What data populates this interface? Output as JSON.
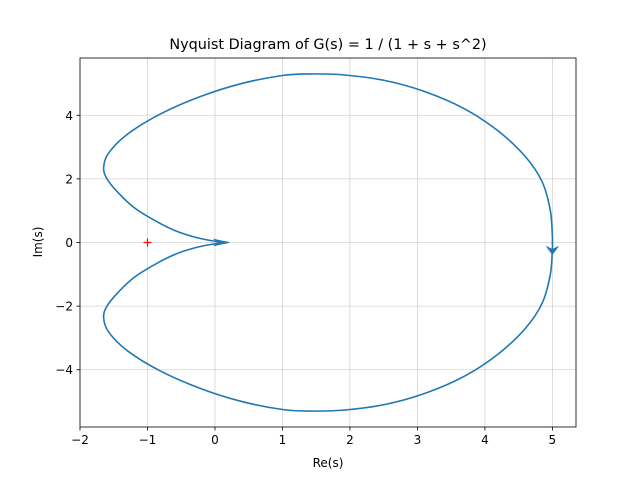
{
  "chart_data": {
    "type": "line",
    "title": "Nyquist Diagram of G(s) = 1 / (1 + s + s^2)",
    "xlabel": "Re(s)",
    "ylabel": "Im(s)",
    "xlim": [
      -2,
      5.35
    ],
    "ylim": [
      -5.8,
      5.8
    ],
    "x_ticks": [
      -2,
      -1,
      0,
      1,
      2,
      3,
      4,
      5
    ],
    "y_ticks": [
      -4,
      -2,
      0,
      2,
      4
    ],
    "x_tick_labels": [
      "−2",
      "−1",
      "0",
      "1",
      "2",
      "3",
      "4",
      "5"
    ],
    "y_tick_labels": [
      "−4",
      "−2",
      "0",
      "2",
      "4"
    ],
    "grid": true,
    "series": [
      {
        "color": "#1f77b4",
        "points": [
          [
            0.2,
            0.0
          ],
          [
            0.0,
            0.04
          ],
          [
            -0.3,
            0.17
          ],
          [
            -0.6,
            0.38
          ],
          [
            -0.9,
            0.7
          ],
          [
            -1.2,
            1.1
          ],
          [
            -1.45,
            1.6
          ],
          [
            -1.6,
            2.0
          ],
          [
            -1.65,
            2.35
          ],
          [
            -1.58,
            2.8
          ],
          [
            -1.3,
            3.4
          ],
          [
            -0.8,
            4.05
          ],
          [
            -0.2,
            4.6
          ],
          [
            0.4,
            5.0
          ],
          [
            1.0,
            5.25
          ],
          [
            1.4,
            5.3
          ],
          [
            1.9,
            5.27
          ],
          [
            2.5,
            5.1
          ],
          [
            3.1,
            4.75
          ],
          [
            3.7,
            4.2
          ],
          [
            4.2,
            3.5
          ],
          [
            4.6,
            2.7
          ],
          [
            4.85,
            1.9
          ],
          [
            4.97,
            1.0
          ],
          [
            5.0,
            0.2
          ],
          [
            5.0,
            0.0
          ],
          [
            5.0,
            -0.2
          ],
          [
            4.97,
            -1.0
          ],
          [
            4.85,
            -1.9
          ],
          [
            4.6,
            -2.7
          ],
          [
            4.2,
            -3.5
          ],
          [
            3.7,
            -4.2
          ],
          [
            3.1,
            -4.75
          ],
          [
            2.5,
            -5.1
          ],
          [
            1.9,
            -5.27
          ],
          [
            1.4,
            -5.3
          ],
          [
            1.0,
            -5.25
          ],
          [
            0.4,
            -5.0
          ],
          [
            -0.2,
            -4.6
          ],
          [
            -0.8,
            -4.05
          ],
          [
            -1.3,
            -3.4
          ],
          [
            -1.58,
            -2.8
          ],
          [
            -1.65,
            -2.35
          ],
          [
            -1.6,
            -2.0
          ],
          [
            -1.45,
            -1.6
          ],
          [
            -1.2,
            -1.1
          ],
          [
            -0.9,
            -0.7
          ],
          [
            -0.6,
            -0.38
          ],
          [
            -0.3,
            -0.17
          ],
          [
            0.0,
            -0.04
          ],
          [
            0.2,
            0.0
          ]
        ]
      }
    ],
    "arrows": [
      {
        "x": 0.2,
        "y": 0.0,
        "direction": "right"
      },
      {
        "x": 5.0,
        "y": -0.25,
        "direction": "down"
      }
    ],
    "critical_point": {
      "x": -1,
      "y": 0,
      "marker": "+",
      "color": "#ff0000"
    }
  }
}
